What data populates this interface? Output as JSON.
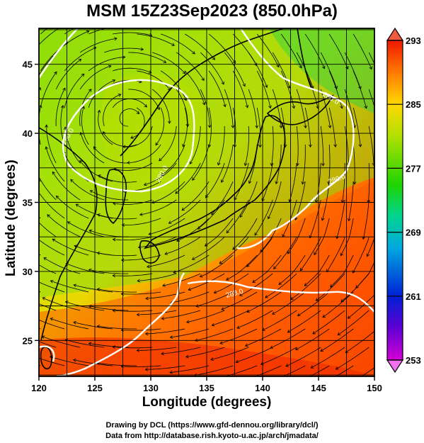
{
  "title": "MSM 15Z23Sep2023 (850.0hPa)",
  "x_axis": {
    "label": "Longitude (degrees)",
    "ticks": [
      120,
      125,
      130,
      135,
      140,
      145,
      150
    ],
    "range": [
      120,
      150
    ]
  },
  "y_axis": {
    "label": "Latitude  (degrees)",
    "ticks": [
      25,
      30,
      35,
      40,
      45
    ],
    "range": [
      22.4,
      47.6
    ]
  },
  "colorbar": {
    "ticks": [
      293,
      285,
      277,
      269,
      261,
      253
    ],
    "range": [
      253,
      293
    ],
    "colors": [
      "#d400d4",
      "#4b00d4",
      "#0019d4",
      "#00a6e0",
      "#00d4a0",
      "#10d400",
      "#a6e000",
      "#ffe000",
      "#ff8000",
      "#f02000"
    ]
  },
  "contour_labels": [
    "280.0",
    "280.0",
    "280.0",
    "280.0",
    "288.0"
  ],
  "credits": [
    "Drawing by DCL (https://www.gfd-dennou.org/library/dcl/)",
    "Data from http://database.rish.kyoto-u.ac.jp/arch/jmadata/"
  ]
}
